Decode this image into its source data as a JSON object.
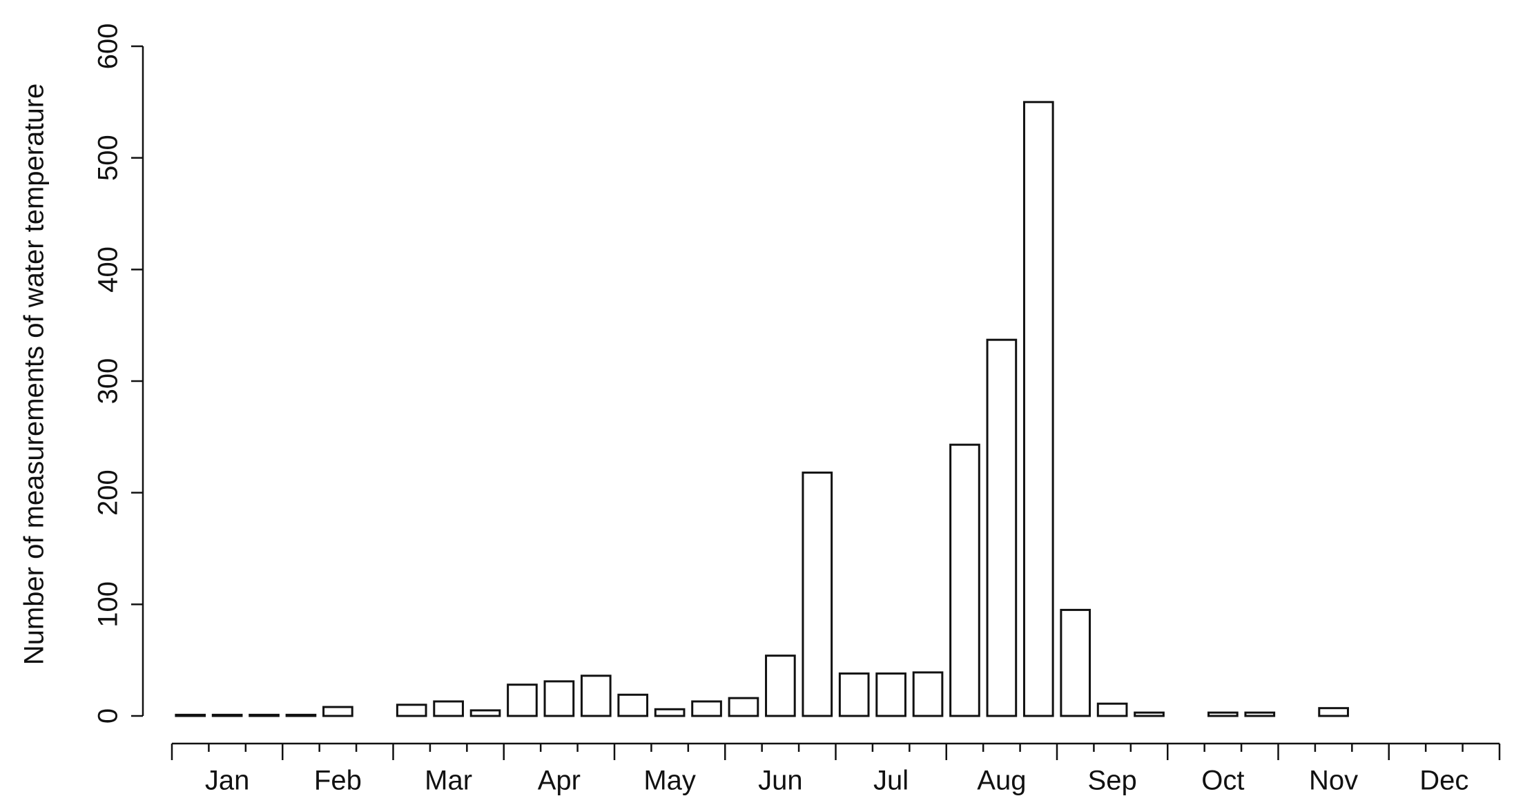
{
  "chart_data": {
    "type": "bar",
    "ylabel": "Number of  measurements of water temperature",
    "categories": [
      null,
      null,
      null,
      null,
      null,
      null,
      null,
      null,
      null,
      null,
      null,
      null,
      null,
      null,
      null,
      null,
      null,
      null,
      null,
      null,
      null,
      null,
      null,
      null,
      null,
      null,
      null,
      null,
      null,
      null,
      null,
      null,
      null,
      null,
      null,
      null
    ],
    "values": [
      1,
      1,
      1,
      1,
      8,
      null,
      10,
      13,
      5,
      28,
      31,
      36,
      19,
      6,
      13,
      16,
      54,
      218,
      38,
      38,
      39,
      243,
      337,
      550,
      95,
      11,
      3,
      null,
      3,
      3,
      null,
      7,
      null,
      null,
      null,
      null
    ],
    "month_labels": [
      "Jan",
      "Feb",
      "Mar",
      "Apr",
      "May",
      "Jun",
      "Jul",
      "Aug",
      "Sep",
      "Oct",
      "Nov",
      "Dec"
    ],
    "color": "#ffffff",
    "ylim": [
      0,
      600
    ],
    "yticks": [
      0,
      100,
      200,
      300,
      400,
      500,
      600
    ]
  }
}
